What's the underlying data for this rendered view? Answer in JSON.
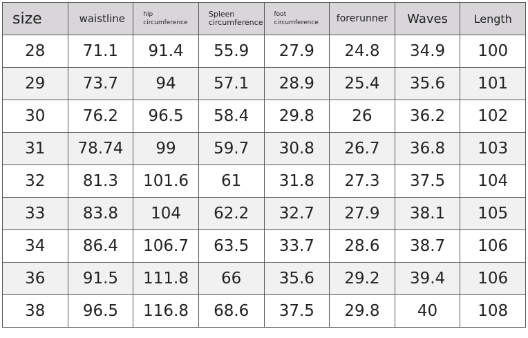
{
  "table": {
    "header": [
      "size",
      "waistline",
      "hip circumference",
      "Spleen circumference",
      "foot circumference",
      "forerunner",
      "Waves",
      "Length"
    ],
    "rows": [
      [
        "28",
        "71.1",
        "91.4",
        "55.9",
        "27.9",
        "24.8",
        "34.9",
        "100"
      ],
      [
        "29",
        "73.7",
        "94",
        "57.1",
        "28.9",
        "25.4",
        "35.6",
        "101"
      ],
      [
        "30",
        "76.2",
        "96.5",
        "58.4",
        "29.8",
        "26",
        "36.2",
        "102"
      ],
      [
        "31",
        "78.74",
        "99",
        "59.7",
        "30.8",
        "26.7",
        "36.8",
        "103"
      ],
      [
        "32",
        "81.3",
        "101.6",
        "61",
        "31.8",
        "27.3",
        "37.5",
        "104"
      ],
      [
        "33",
        "83.8",
        "104",
        "62.2",
        "32.7",
        "27.9",
        "38.1",
        "105"
      ],
      [
        "34",
        "86.4",
        "106.7",
        "63.5",
        "33.7",
        "28.6",
        "38.7",
        "106"
      ],
      [
        "36",
        "91.5",
        "111.8",
        "66",
        "35.6",
        "29.2",
        "39.4",
        "106"
      ],
      [
        "38",
        "96.5",
        "116.8",
        "68.6",
        "37.5",
        "29.8",
        "40",
        "108"
      ]
    ]
  }
}
